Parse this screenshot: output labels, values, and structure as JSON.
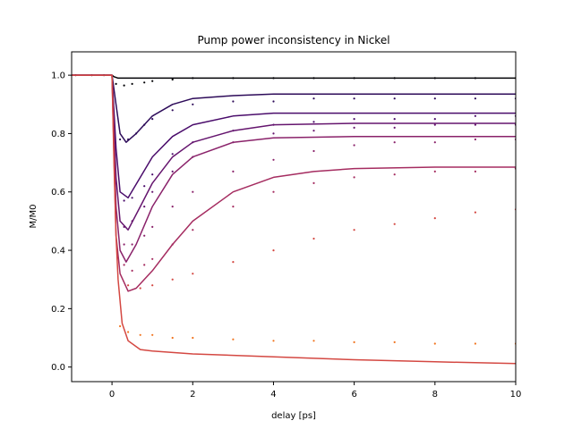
{
  "chart_data": {
    "type": "line",
    "title": "Pump power inconsistency in Nickel",
    "xlabel": "delay [ps]",
    "ylabel": "M/M0",
    "xlim": [
      -1,
      10
    ],
    "ylim": [
      -0.05,
      1.08
    ],
    "xticks": [
      0,
      2,
      4,
      6,
      8,
      10
    ],
    "yticks": [
      0.0,
      0.2,
      0.4,
      0.6,
      0.8,
      1.0
    ],
    "ytick_labels": [
      "0.0",
      "0.2",
      "0.4",
      "0.6",
      "0.8",
      "1.0"
    ],
    "grid": false,
    "legend": "none",
    "series": [
      {
        "color": "#000004",
        "fit": {
          "x": [
            -1,
            0,
            0.05,
            0.15,
            0.3,
            0.6,
            1,
            2,
            4,
            6,
            10
          ],
          "y": [
            1.0,
            1.0,
            0.995,
            0.99,
            0.99,
            0.99,
            0.99,
            0.99,
            0.99,
            0.99,
            0.99
          ]
        },
        "data": {
          "x": [
            -0.9,
            -0.5,
            -0.2,
            0.1,
            0.3,
            0.5,
            0.8,
            1.0,
            1.5,
            2.0,
            3.0,
            4.0,
            5.0,
            6.0,
            7.0,
            8.0,
            9.0,
            10.0
          ],
          "y": [
            1.0,
            1.0,
            1.0,
            0.97,
            0.965,
            0.97,
            0.975,
            0.98,
            0.985,
            0.99,
            0.99,
            0.99,
            0.99,
            0.99,
            0.99,
            0.99,
            0.99,
            0.99
          ]
        }
      },
      {
        "color": "#2d0b59",
        "fit": {
          "x": [
            -1,
            0,
            0.1,
            0.2,
            0.35,
            0.6,
            1.0,
            1.5,
            2.0,
            3.0,
            4.0,
            6.0,
            10.0
          ],
          "y": [
            1.0,
            1.0,
            0.9,
            0.8,
            0.77,
            0.8,
            0.86,
            0.9,
            0.92,
            0.93,
            0.935,
            0.935,
            0.935
          ]
        },
        "data": {
          "x": [
            0.2,
            0.4,
            0.6,
            0.8,
            1.0,
            1.5,
            2.0,
            3.0,
            4.0,
            5.0,
            6.0,
            7.0,
            8.0,
            9.0,
            10.0
          ],
          "y": [
            0.78,
            0.78,
            0.8,
            0.83,
            0.85,
            0.88,
            0.9,
            0.91,
            0.91,
            0.92,
            0.92,
            0.92,
            0.92,
            0.92,
            0.92
          ]
        }
      },
      {
        "color": "#4a0c6b",
        "fit": {
          "x": [
            -1,
            0,
            0.1,
            0.2,
            0.4,
            0.7,
            1.0,
            1.5,
            2.0,
            3.0,
            4.0,
            6.0,
            10.0
          ],
          "y": [
            1.0,
            1.0,
            0.75,
            0.6,
            0.58,
            0.65,
            0.72,
            0.79,
            0.83,
            0.86,
            0.87,
            0.87,
            0.87
          ]
        },
        "data": {
          "x": [
            0.3,
            0.5,
            0.8,
            1.0,
            1.5,
            2.0,
            3.0,
            4.0,
            5.0,
            6.0,
            7.0,
            8.0,
            9.0,
            10.0
          ],
          "y": [
            0.57,
            0.58,
            0.62,
            0.66,
            0.73,
            0.77,
            0.81,
            0.83,
            0.84,
            0.85,
            0.85,
            0.85,
            0.86,
            0.86
          ]
        }
      },
      {
        "color": "#65156e",
        "fit": {
          "x": [
            -1,
            0,
            0.1,
            0.2,
            0.4,
            0.7,
            1.0,
            1.5,
            2.0,
            3.0,
            4.0,
            6.0,
            10.0
          ],
          "y": [
            1.0,
            1.0,
            0.65,
            0.5,
            0.47,
            0.55,
            0.63,
            0.72,
            0.77,
            0.81,
            0.83,
            0.835,
            0.835
          ]
        },
        "data": {
          "x": [
            0.3,
            0.5,
            0.8,
            1.0,
            1.5,
            2.0,
            3.0,
            4.0,
            5.0,
            6.0,
            7.0,
            8.0,
            9.0,
            10.0
          ],
          "y": [
            0.48,
            0.5,
            0.55,
            0.6,
            0.67,
            0.72,
            0.77,
            0.8,
            0.81,
            0.82,
            0.82,
            0.83,
            0.83,
            0.83
          ]
        }
      },
      {
        "color": "#8a226a",
        "fit": {
          "x": [
            -1,
            0,
            0.1,
            0.2,
            0.35,
            0.6,
            1.0,
            1.5,
            2.0,
            3.0,
            4.0,
            6.0,
            10.0
          ],
          "y": [
            1.0,
            1.0,
            0.55,
            0.4,
            0.36,
            0.42,
            0.55,
            0.66,
            0.72,
            0.77,
            0.785,
            0.79,
            0.79
          ]
        },
        "data": {
          "x": [
            0.3,
            0.5,
            0.8,
            1.0,
            1.5,
            2.0,
            3.0,
            4.0,
            5.0,
            6.0,
            7.0,
            8.0,
            9.0,
            10.0
          ],
          "y": [
            0.42,
            0.42,
            0.45,
            0.48,
            0.55,
            0.6,
            0.67,
            0.71,
            0.74,
            0.76,
            0.77,
            0.77,
            0.78,
            0.78
          ]
        }
      },
      {
        "color": "#a52c60",
        "fit": {
          "x": [
            -1,
            0,
            0.1,
            0.2,
            0.4,
            0.6,
            1.0,
            1.5,
            2.0,
            3.0,
            4.0,
            5.0,
            6.0,
            8.0,
            10.0
          ],
          "y": [
            1.0,
            1.0,
            0.45,
            0.32,
            0.26,
            0.27,
            0.33,
            0.42,
            0.5,
            0.6,
            0.65,
            0.67,
            0.68,
            0.685,
            0.685
          ]
        },
        "data": {
          "x": [
            0.3,
            0.5,
            0.8,
            1.0,
            1.5,
            2.0,
            3.0,
            4.0,
            5.0,
            6.0,
            7.0,
            8.0,
            9.0,
            10.0
          ],
          "y": [
            0.35,
            0.33,
            0.35,
            0.37,
            0.42,
            0.47,
            0.55,
            0.6,
            0.63,
            0.65,
            0.66,
            0.67,
            0.67,
            0.68
          ]
        }
      },
      {
        "color": "#d44842",
        "fit": {
          "x": [
            -1,
            0,
            0.05,
            0.1,
            0.15,
            0.25,
            0.4,
            0.7,
            1.0,
            2.0,
            4.0,
            6.0,
            8.0,
            10.0
          ],
          "y": [
            1.0,
            1.0,
            0.7,
            0.45,
            0.3,
            0.15,
            0.09,
            0.06,
            0.055,
            0.045,
            0.035,
            0.025,
            0.018,
            0.012
          ]
        },
        "data": {
          "x": [
            0.4,
            0.7,
            1.0,
            1.5,
            2.0,
            3.0,
            4.0,
            5.0,
            6.0,
            7.0,
            8.0,
            9.0,
            10.0
          ],
          "y": [
            0.28,
            0.27,
            0.28,
            0.3,
            0.32,
            0.36,
            0.4,
            0.44,
            0.47,
            0.49,
            0.51,
            0.53,
            0.54
          ]
        }
      },
      {
        "color": "#f1731d",
        "fit": null,
        "data": {
          "x": [
            0.2,
            0.4,
            0.7,
            1.0,
            1.5,
            2.0,
            3.0,
            4.0,
            5.0,
            6.0,
            7.0,
            8.0,
            9.0,
            10.0
          ],
          "y": [
            0.14,
            0.12,
            0.11,
            0.11,
            0.1,
            0.1,
            0.095,
            0.09,
            0.09,
            0.085,
            0.085,
            0.08,
            0.08,
            0.08
          ]
        }
      }
    ]
  }
}
